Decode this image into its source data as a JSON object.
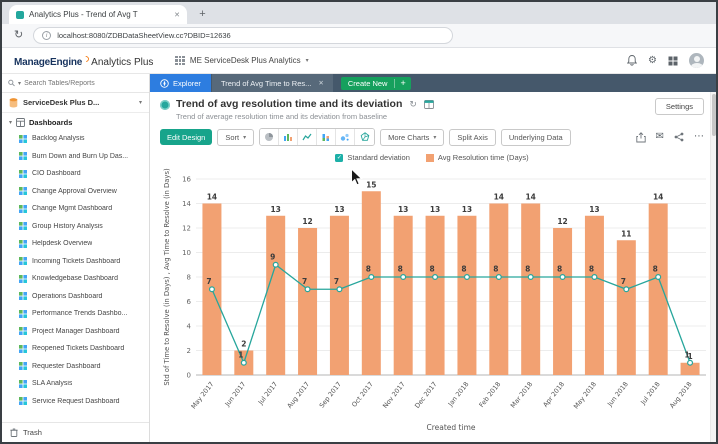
{
  "icons": {
    "close": "✕",
    "plus": "+",
    "caret": "▾",
    "reload": "↻",
    "gear": "⚙",
    "mail": "✉",
    "check": "✓",
    "more": "⋯"
  },
  "browser": {
    "tab_title": "Analytics Plus - Trend of Avg T",
    "url": "localhost:8080/ZDBDataSheetView.cc?DBID=12636"
  },
  "app_header": {
    "brand": "ManageEngine",
    "product": "Analytics Plus",
    "workspace": "ME ServiceDesk Plus Analytics"
  },
  "tabstrip": {
    "explorer": "Explorer",
    "report_tab": "Trend of Avg Time to Res...",
    "create_new": "Create New"
  },
  "sidebar": {
    "search_placeholder": "Search Tables/Reports",
    "database_name": "ServiceDesk Plus D...",
    "dashboards_label": "Dashboards",
    "trash_label": "Trash",
    "items": [
      "Backlog Analysis",
      "Burn Down and Burn Up Das...",
      "CIO Dashboard",
      "Change Approval Overview",
      "Change Mgmt Dashboard",
      "Group History Analysis",
      "Helpdesk Overview",
      "Incoming Tickets Dashboard",
      "Knowledgebase Dashboard",
      "Operations Dashboard",
      "Performance Trends Dashbo...",
      "Project Manager Dashboard",
      "Reopened Tickets Dashboard",
      "Requester Dashboard",
      "SLA Analysis",
      "Service Request Dashboard"
    ]
  },
  "report": {
    "title": "Trend of avg resolution time and its deviation",
    "subtitle": "Trend of average resolution time and its deviation from baseline",
    "settings_label": "Settings",
    "edit_design_label": "Edit Design",
    "sort_label": "Sort",
    "more_charts_label": "More Charts",
    "split_axis_label": "Split Axis",
    "underlying_data_label": "Underlying Data"
  },
  "chart_data": {
    "type": "bar",
    "subtype": "bar+line combo",
    "title": "Trend of avg resolution time and its deviation",
    "categories": [
      "May 2017",
      "Jun 2017",
      "Jul 2017",
      "Aug 2017",
      "Sep 2017",
      "Oct 2017",
      "Nov 2017",
      "Dec 2017",
      "Jan 2018",
      "Feb 2018",
      "Mar 2018",
      "Apr 2018",
      "May 2018",
      "Jun 2018",
      "Jul 2018",
      "Aug 2018"
    ],
    "series": [
      {
        "name": "Avg Resolution time (Days)",
        "type": "bar",
        "color": "#f2a172",
        "values": [
          14,
          2,
          13,
          12,
          13,
          15,
          13,
          13,
          13,
          14,
          14,
          12,
          13,
          11,
          14,
          1
        ]
      },
      {
        "name": "Standard deviation",
        "type": "line",
        "color": "#27a69c",
        "values": [
          7,
          1,
          9,
          7,
          7,
          8,
          8,
          8,
          8,
          8,
          8,
          8,
          8,
          7,
          8,
          1
        ]
      }
    ],
    "xlabel": "Created time",
    "ylabel": "Std of Time to Resolve (in Days) , Avg Time to Resolve (in Days)",
    "ylim": [
      0,
      16
    ],
    "yticks": [
      0,
      2,
      4,
      6,
      8,
      10,
      12,
      14,
      16
    ],
    "grid": true,
    "legend_position": "top"
  }
}
